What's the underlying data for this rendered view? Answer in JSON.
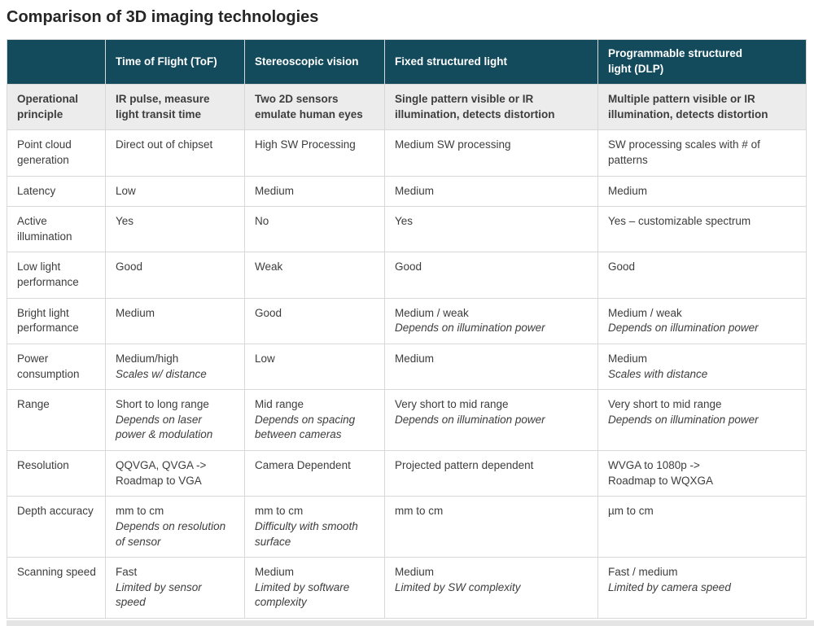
{
  "title": "Comparison of 3D imaging technologies",
  "colors": {
    "header-bg": "#134b5c",
    "header-fg": "#ffffff",
    "row-em-bg": "#ececec",
    "border": "#d8d8d8",
    "text": "#3d3d3d",
    "title": "#262626",
    "strip": "#e5e5e5"
  },
  "table": {
    "columns": [
      "",
      "Time of Flight (ToF)",
      "Stereoscopic vision",
      "Fixed structured light",
      "Programmable structured\nlight (DLP)"
    ],
    "rows": [
      {
        "label": "Operational principle",
        "emphasis": true,
        "cells": [
          {
            "text": "IR pulse, measure light transit time"
          },
          {
            "text": "Two 2D sensors emulate human eyes"
          },
          {
            "text": "Single pattern visible or IR illumination, detects distortion"
          },
          {
            "text": "Multiple pattern visible or IR illumination, detects distortion"
          }
        ]
      },
      {
        "label": "Point cloud generation",
        "emphasis": false,
        "cells": [
          {
            "text": "Direct out of chipset"
          },
          {
            "text": "High SW Processing"
          },
          {
            "text": "Medium SW processing"
          },
          {
            "text": "SW processing scales with # of patterns"
          }
        ]
      },
      {
        "label": "Latency",
        "emphasis": false,
        "cells": [
          {
            "text": "Low"
          },
          {
            "text": "Medium"
          },
          {
            "text": "Medium"
          },
          {
            "text": "Medium"
          }
        ]
      },
      {
        "label": "Active illumination",
        "emphasis": false,
        "cells": [
          {
            "text": "Yes"
          },
          {
            "text": "No"
          },
          {
            "text": "Yes"
          },
          {
            "text": "Yes – customizable spectrum"
          }
        ]
      },
      {
        "label": "Low light performance",
        "emphasis": false,
        "cells": [
          {
            "text": "Good"
          },
          {
            "text": "Weak"
          },
          {
            "text": "Good"
          },
          {
            "text": "Good"
          }
        ]
      },
      {
        "label": "Bright light performance",
        "emphasis": false,
        "cells": [
          {
            "text": "Medium"
          },
          {
            "text": "Good"
          },
          {
            "text": "Medium / weak",
            "note": "Depends on illumination power"
          },
          {
            "text": "Medium / weak",
            "note": "Depends on illumination power"
          }
        ]
      },
      {
        "label": "Power consumption",
        "emphasis": false,
        "cells": [
          {
            "text": "Medium/high",
            "note": "Scales w/ distance"
          },
          {
            "text": "Low"
          },
          {
            "text": "Medium"
          },
          {
            "text": "Medium",
            "note": "Scales with distance"
          }
        ]
      },
      {
        "label": "Range",
        "emphasis": false,
        "cells": [
          {
            "text": "Short to long range",
            "note": "Depends on laser power & modulation"
          },
          {
            "text": "Mid range",
            "note": "Depends on spacing between cameras"
          },
          {
            "text": "Very short to mid range",
            "note": "Depends on illumination power"
          },
          {
            "text": "Very short to mid range",
            "note": "Depends on illumination power"
          }
        ]
      },
      {
        "label": "Resolution",
        "emphasis": false,
        "cells": [
          {
            "text": "QQVGA, QVGA ->\nRoadmap to VGA"
          },
          {
            "text": "Camera Dependent"
          },
          {
            "text": "Projected pattern dependent"
          },
          {
            "text": "WVGA to 1080p ->\nRoadmap to WQXGA"
          }
        ]
      },
      {
        "label": "Depth accuracy",
        "emphasis": false,
        "cells": [
          {
            "text": "mm to cm",
            "note": "Depends on resolution of sensor"
          },
          {
            "text": "mm to cm",
            "note": "Difficulty with smooth surface"
          },
          {
            "text": "mm to cm"
          },
          {
            "text": "µm to cm"
          }
        ]
      },
      {
        "label": "Scanning speed",
        "emphasis": false,
        "cells": [
          {
            "text": "Fast",
            "note": "Limited by sensor speed"
          },
          {
            "text": "Medium",
            "note": "Limited by software complexity"
          },
          {
            "text": "Medium",
            "note": "Limited by SW complexity"
          },
          {
            "text": "Fast / medium",
            "note": "Limited by camera speed"
          }
        ]
      }
    ]
  }
}
